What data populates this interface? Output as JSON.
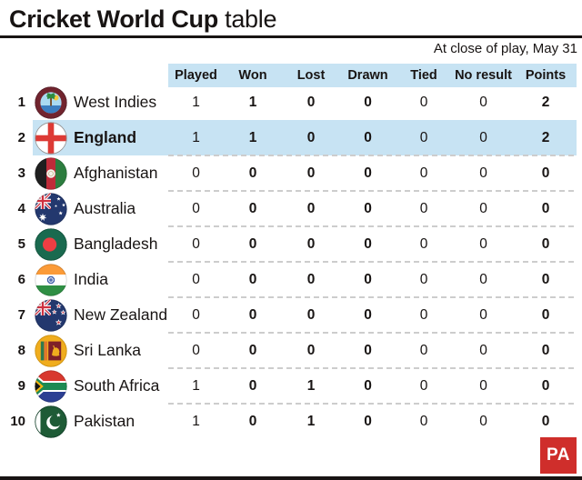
{
  "title": {
    "bold": "Cricket World Cup",
    "regular": "table"
  },
  "subtitle": "At close of play, May 31",
  "logo": "PA",
  "colors": {
    "band_blue": "#c7e3f3",
    "highlight_blue": "#c7e3f3",
    "ink": "#181413",
    "dash_gray": "#cdcdcd",
    "pa_red": "#cf2e2b"
  },
  "chart_data": {
    "type": "table",
    "title": "Cricket World Cup table",
    "subtitle": "At close of play, May 31",
    "columns": [
      "Played",
      "Won",
      "Lost",
      "Drawn",
      "Tied",
      "No result",
      "Points"
    ],
    "rows": [
      {
        "rank": "1",
        "team": "West Indies",
        "flag": "west-indies",
        "highlighted": false,
        "values": [
          "1",
          "1",
          "0",
          "0",
          "0",
          "0",
          "2"
        ]
      },
      {
        "rank": "2",
        "team": "England",
        "flag": "england",
        "highlighted": true,
        "values": [
          "1",
          "1",
          "0",
          "0",
          "0",
          "0",
          "2"
        ]
      },
      {
        "rank": "3",
        "team": "Afghanistan",
        "flag": "afghanistan",
        "highlighted": false,
        "values": [
          "0",
          "0",
          "0",
          "0",
          "0",
          "0",
          "0"
        ]
      },
      {
        "rank": "4",
        "team": "Australia",
        "flag": "australia",
        "highlighted": false,
        "values": [
          "0",
          "0",
          "0",
          "0",
          "0",
          "0",
          "0"
        ]
      },
      {
        "rank": "5",
        "team": "Bangladesh",
        "flag": "bangladesh",
        "highlighted": false,
        "values": [
          "0",
          "0",
          "0",
          "0",
          "0",
          "0",
          "0"
        ]
      },
      {
        "rank": "6",
        "team": "India",
        "flag": "india",
        "highlighted": false,
        "values": [
          "0",
          "0",
          "0",
          "0",
          "0",
          "0",
          "0"
        ]
      },
      {
        "rank": "7",
        "team": "New Zealand",
        "flag": "new-zealand",
        "highlighted": false,
        "values": [
          "0",
          "0",
          "0",
          "0",
          "0",
          "0",
          "0"
        ]
      },
      {
        "rank": "8",
        "team": "Sri Lanka",
        "flag": "sri-lanka",
        "highlighted": false,
        "values": [
          "0",
          "0",
          "0",
          "0",
          "0",
          "0",
          "0"
        ]
      },
      {
        "rank": "9",
        "team": "South Africa",
        "flag": "south-africa",
        "highlighted": false,
        "values": [
          "1",
          "0",
          "1",
          "0",
          "0",
          "0",
          "0"
        ]
      },
      {
        "rank": "10",
        "team": "Pakistan",
        "flag": "pakistan",
        "highlighted": false,
        "values": [
          "1",
          "0",
          "1",
          "0",
          "0",
          "0",
          "0"
        ]
      }
    ]
  }
}
